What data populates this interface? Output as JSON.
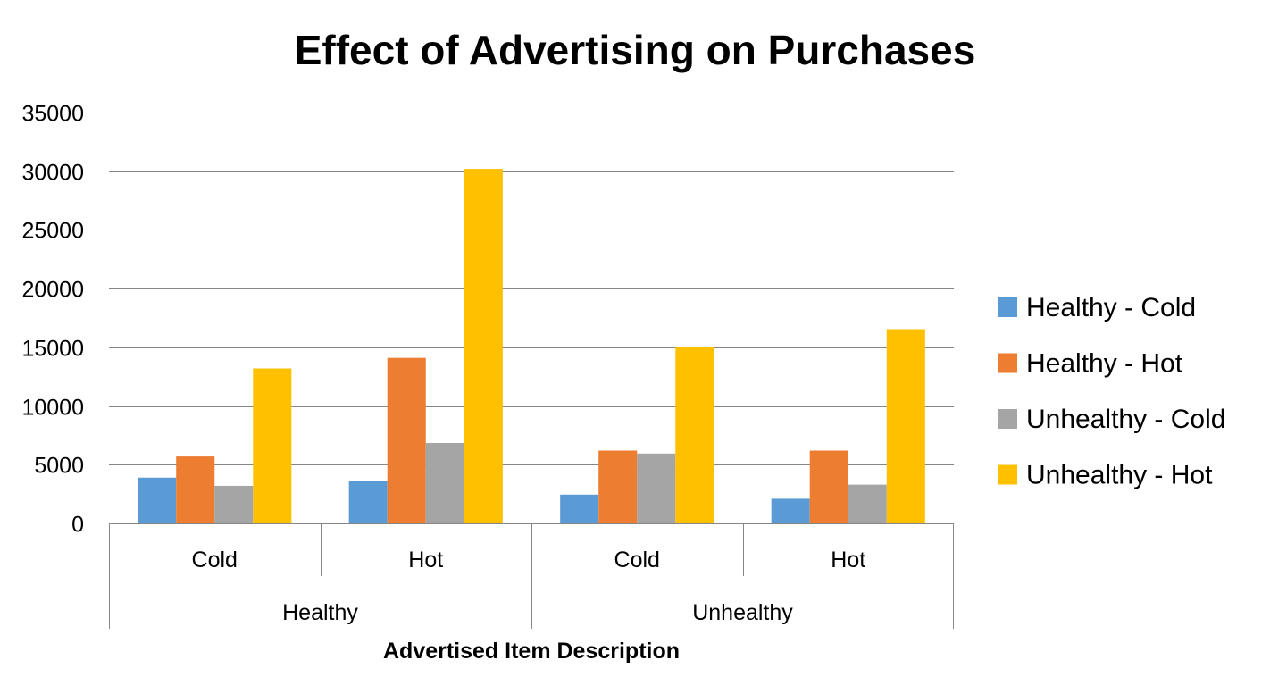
{
  "chart_data": {
    "type": "bar",
    "title": "Effect of Advertising on Purchases",
    "xlabel": "Advertised Item Description",
    "ylabel": "",
    "ylim": [
      0,
      35000
    ],
    "yticks": [
      0,
      5000,
      10000,
      15000,
      20000,
      25000,
      30000,
      35000
    ],
    "grid": true,
    "legend_position": "right",
    "groups": [
      {
        "label": "Healthy",
        "categories": [
          "Cold",
          "Hot"
        ]
      },
      {
        "label": "Unhealthy",
        "categories": [
          "Cold",
          "Hot"
        ]
      }
    ],
    "categories": [
      "Cold",
      "Hot",
      "Cold",
      "Hot"
    ],
    "series": [
      {
        "name": "Healthy - Cold",
        "color": "#5B9BD5",
        "values": [
          3900,
          3600,
          2450,
          2100
        ]
      },
      {
        "name": "Healthy - Hot",
        "color": "#ED7D31",
        "values": [
          5700,
          14100,
          6200,
          6200
        ]
      },
      {
        "name": "Unhealthy - Cold",
        "color": "#A5A5A5",
        "values": [
          3200,
          6850,
          5950,
          3300
        ]
      },
      {
        "name": "Unhealthy - Hot",
        "color": "#FFC000",
        "values": [
          13200,
          30200,
          15050,
          16550
        ]
      }
    ]
  }
}
